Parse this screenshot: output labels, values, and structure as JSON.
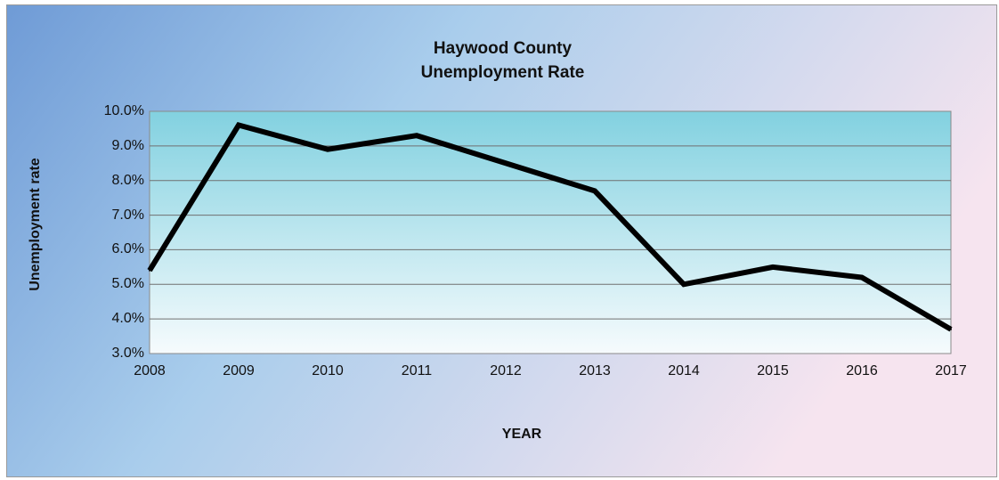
{
  "colors": {
    "background_left": "#6f9bd6",
    "background_mid": "#a9cdec",
    "background_right": "#f6e4ef",
    "plot_top": "#82d1e0",
    "plot_bottom": "#f6fbfd",
    "line": "#000000",
    "gridline": "#707070"
  },
  "chart_data": {
    "type": "line",
    "title": [
      "Haywood County",
      "Unemployment Rate"
    ],
    "xlabel": "YEAR",
    "ylabel": "Unemployment rate",
    "x": [
      "2008",
      "2009",
      "2010",
      "2011",
      "2012",
      "2013",
      "2014",
      "2015",
      "2016",
      "2017"
    ],
    "series": [
      {
        "values": [
          0.054,
          0.096,
          0.089,
          0.093,
          0.085,
          0.077,
          0.05,
          0.055,
          0.052,
          0.037
        ]
      }
    ],
    "ylim": [
      0.03,
      0.1
    ],
    "yticks": [
      0.03,
      0.04,
      0.05,
      0.06,
      0.07,
      0.08,
      0.09,
      0.1
    ],
    "ytick_labels": [
      "3.0%",
      "4.0%",
      "5.0%",
      "6.0%",
      "7.0%",
      "8.0%",
      "9.0%",
      "10.0%"
    ],
    "grid": "horizontal",
    "legend": "none"
  }
}
